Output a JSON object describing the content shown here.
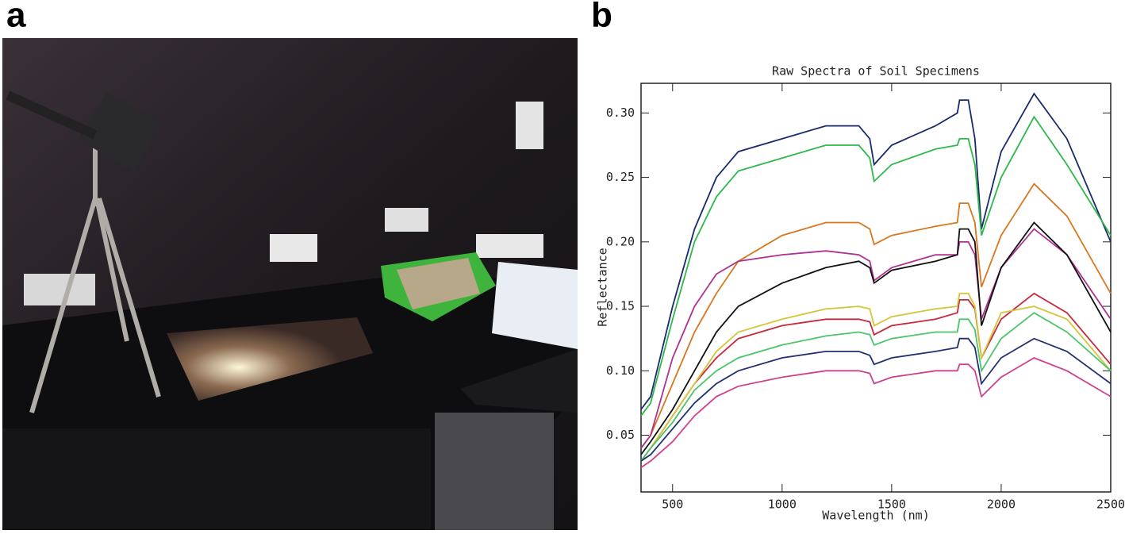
{
  "panels": [
    {
      "label": "a"
    },
    {
      "label": "b"
    }
  ],
  "chart_data": {
    "type": "line",
    "title": "Raw Spectra of Soil Specimens",
    "x_label": "Wavelength (nm)",
    "y_label": "Reflectance",
    "x": [
      356,
      400,
      500,
      600,
      700,
      800,
      1000,
      1200,
      1350,
      1400,
      1420,
      1500,
      1700,
      1800,
      1810,
      1850,
      1880,
      1910,
      2000,
      2150,
      2300,
      2500
    ],
    "xlim": [
      356,
      2500
    ],
    "xticks": [
      500,
      1000,
      1500,
      2000,
      2500
    ],
    "ylim": [
      0.006,
      0.323
    ],
    "yticks": [
      {
        "value": 0.05,
        "label": "0.05"
      },
      {
        "value": 0.1,
        "label": "0.10"
      },
      0.15,
      {
        "value": 0.2,
        "label": "0.20"
      },
      0.25,
      {
        "value": 0.3,
        "label": "0.30"
      }
    ],
    "grid": false,
    "series": [
      {
        "color": "#1a2a6c",
        "values": [
          0.07,
          0.08,
          0.15,
          0.21,
          0.25,
          0.27,
          0.28,
          0.29,
          0.29,
          0.28,
          0.26,
          0.275,
          0.29,
          0.3,
          0.31,
          0.31,
          0.28,
          0.21,
          0.27,
          0.315,
          0.28,
          0.2
        ]
      },
      {
        "color": "#2db84a",
        "values": [
          0.065,
          0.075,
          0.14,
          0.2,
          0.235,
          0.255,
          0.265,
          0.275,
          0.275,
          0.265,
          0.247,
          0.26,
          0.272,
          0.275,
          0.28,
          0.28,
          0.26,
          0.205,
          0.25,
          0.297,
          0.26,
          0.205
        ]
      },
      {
        "color": "#d9771e",
        "values": [
          0.04,
          0.05,
          0.09,
          0.13,
          0.16,
          0.185,
          0.205,
          0.215,
          0.215,
          0.21,
          0.198,
          0.205,
          0.212,
          0.215,
          0.23,
          0.23,
          0.215,
          0.165,
          0.205,
          0.245,
          0.22,
          0.16
        ]
      },
      {
        "color": "#b0308f",
        "values": [
          0.04,
          0.05,
          0.11,
          0.15,
          0.175,
          0.185,
          0.19,
          0.193,
          0.19,
          0.185,
          0.17,
          0.18,
          0.19,
          0.19,
          0.2,
          0.2,
          0.19,
          0.14,
          0.18,
          0.21,
          0.19,
          0.14
        ]
      },
      {
        "color": "#111111",
        "values": [
          0.035,
          0.045,
          0.07,
          0.1,
          0.13,
          0.15,
          0.168,
          0.18,
          0.185,
          0.18,
          0.168,
          0.178,
          0.185,
          0.19,
          0.21,
          0.21,
          0.2,
          0.135,
          0.18,
          0.215,
          0.19,
          0.13
        ]
      },
      {
        "color": "#c8283c",
        "values": [
          0.03,
          0.04,
          0.065,
          0.09,
          0.11,
          0.125,
          0.135,
          0.14,
          0.14,
          0.138,
          0.128,
          0.135,
          0.14,
          0.145,
          0.155,
          0.155,
          0.148,
          0.11,
          0.14,
          0.16,
          0.145,
          0.105
        ]
      },
      {
        "color": "#d4c63a",
        "values": [
          0.03,
          0.04,
          0.065,
          0.09,
          0.115,
          0.13,
          0.14,
          0.148,
          0.15,
          0.148,
          0.135,
          0.142,
          0.148,
          0.15,
          0.16,
          0.16,
          0.15,
          0.11,
          0.145,
          0.15,
          0.14,
          0.1
        ]
      },
      {
        "color": "#4cc46a",
        "values": [
          0.03,
          0.04,
          0.06,
          0.085,
          0.1,
          0.11,
          0.12,
          0.127,
          0.13,
          0.128,
          0.12,
          0.125,
          0.13,
          0.13,
          0.14,
          0.14,
          0.132,
          0.1,
          0.125,
          0.145,
          0.13,
          0.1
        ]
      },
      {
        "color": "#223070",
        "values": [
          0.03,
          0.035,
          0.055,
          0.075,
          0.09,
          0.1,
          0.11,
          0.115,
          0.115,
          0.112,
          0.105,
          0.11,
          0.115,
          0.118,
          0.125,
          0.125,
          0.118,
          0.09,
          0.11,
          0.125,
          0.115,
          0.09
        ]
      },
      {
        "color": "#d0408a",
        "values": [
          0.025,
          0.03,
          0.045,
          0.065,
          0.08,
          0.088,
          0.095,
          0.1,
          0.1,
          0.098,
          0.09,
          0.095,
          0.1,
          0.1,
          0.105,
          0.105,
          0.1,
          0.08,
          0.095,
          0.11,
          0.1,
          0.08
        ]
      }
    ]
  }
}
